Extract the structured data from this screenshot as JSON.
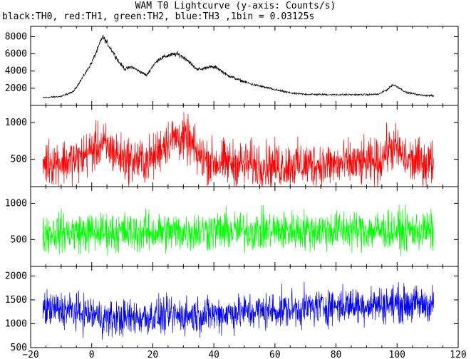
{
  "title": "WAM T0 Lightcurve (y-axis: Counts/s)",
  "subtitle": "black:TH0, red:TH1, green:TH2, blue:TH3 ,1bin = 0.03125s",
  "chart_data": [
    {
      "type": "line",
      "series": [
        {
          "name": "TH0",
          "color": "#000000",
          "profile": [
            [
              -16,
              900
            ],
            [
              -10,
              1050
            ],
            [
              -6,
              1600
            ],
            [
              -2,
              3800
            ],
            [
              0,
              5000
            ],
            [
              2,
              6600
            ],
            [
              3.5,
              8000
            ],
            [
              5,
              7300
            ],
            [
              7,
              6200
            ],
            [
              9,
              5000
            ],
            [
              11,
              4200
            ],
            [
              13,
              4500
            ],
            [
              16,
              3900
            ],
            [
              18,
              3500
            ],
            [
              20,
              4600
            ],
            [
              22,
              5400
            ],
            [
              25,
              5800
            ],
            [
              28,
              6000
            ],
            [
              31,
              5400
            ],
            [
              34,
              4300
            ],
            [
              36,
              4200
            ],
            [
              38,
              4500
            ],
            [
              41,
              4400
            ],
            [
              44,
              3600
            ],
            [
              48,
              3000
            ],
            [
              52,
              2500
            ],
            [
              58,
              2000
            ],
            [
              63,
              1600
            ],
            [
              66,
              1400
            ],
            [
              70,
              1300
            ],
            [
              80,
              1250
            ],
            [
              90,
              1250
            ],
            [
              94,
              1300
            ],
            [
              97,
              1900
            ],
            [
              98.5,
              2400
            ],
            [
              100,
              2200
            ],
            [
              103,
              1500
            ],
            [
              108,
              1200
            ],
            [
              112,
              1100
            ]
          ],
          "noise": 550
        }
      ],
      "xlim": [
        -20,
        120
      ],
      "ylim": [
        0,
        9200
      ],
      "yticks": [
        2000,
        4000,
        6000,
        8000
      ],
      "ytick_labels": [
        "2000",
        "4000",
        "6000",
        "8000"
      ]
    },
    {
      "type": "line",
      "series": [
        {
          "name": "TH1",
          "color": "#ff0000",
          "profile": [
            [
              -16,
              460
            ],
            [
              -5,
              480
            ],
            [
              0,
              620
            ],
            [
              3,
              700
            ],
            [
              6,
              640
            ],
            [
              10,
              520
            ],
            [
              16,
              470
            ],
            [
              20,
              510
            ],
            [
              24,
              730
            ],
            [
              28,
              800
            ],
            [
              32,
              740
            ],
            [
              35,
              540
            ],
            [
              40,
              460
            ],
            [
              60,
              420
            ],
            [
              80,
              430
            ],
            [
              94,
              450
            ],
            [
              97,
              650
            ],
            [
              100,
              640
            ],
            [
              103,
              480
            ],
            [
              112,
              450
            ]
          ],
          "noise": 340
        }
      ],
      "xlim": [
        -20,
        120
      ],
      "ylim": [
        130,
        1230
      ],
      "yticks": [
        500,
        1000
      ],
      "ytick_labels": [
        "500",
        "1000"
      ]
    },
    {
      "type": "line",
      "series": [
        {
          "name": "TH2",
          "color": "#00ff00",
          "profile": [
            [
              -16,
              600
            ],
            [
              20,
              600
            ],
            [
              40,
              620
            ],
            [
              60,
              620
            ],
            [
              80,
              630
            ],
            [
              112,
              620
            ]
          ],
          "noise": 300
        }
      ],
      "xlim": [
        -20,
        120
      ],
      "ylim": [
        130,
        1230
      ],
      "yticks": [
        500,
        1000
      ],
      "ytick_labels": [
        "500",
        "1000"
      ]
    },
    {
      "type": "line",
      "series": [
        {
          "name": "TH3",
          "color": "#0000ff",
          "profile": [
            [
              -16,
              1300
            ],
            [
              -10,
              1300
            ],
            [
              0,
              1200
            ],
            [
              5,
              1100
            ],
            [
              20,
              1150
            ],
            [
              40,
              1200
            ],
            [
              60,
              1280
            ],
            [
              80,
              1380
            ],
            [
              100,
              1420
            ],
            [
              112,
              1400
            ]
          ],
          "noise": 420
        }
      ],
      "xlim": [
        -20,
        120
      ],
      "ylim": [
        500,
        2200
      ],
      "yticks": [
        500,
        1000,
        1500,
        2000
      ],
      "ytick_labels": [
        "500",
        "1000",
        "1500",
        "2000"
      ],
      "xticks": [
        -20,
        0,
        20,
        40,
        60,
        80,
        100,
        120
      ],
      "xtick_labels": [
        "−20",
        "0",
        "20",
        "40",
        "60",
        "80",
        "100",
        "120"
      ]
    }
  ]
}
